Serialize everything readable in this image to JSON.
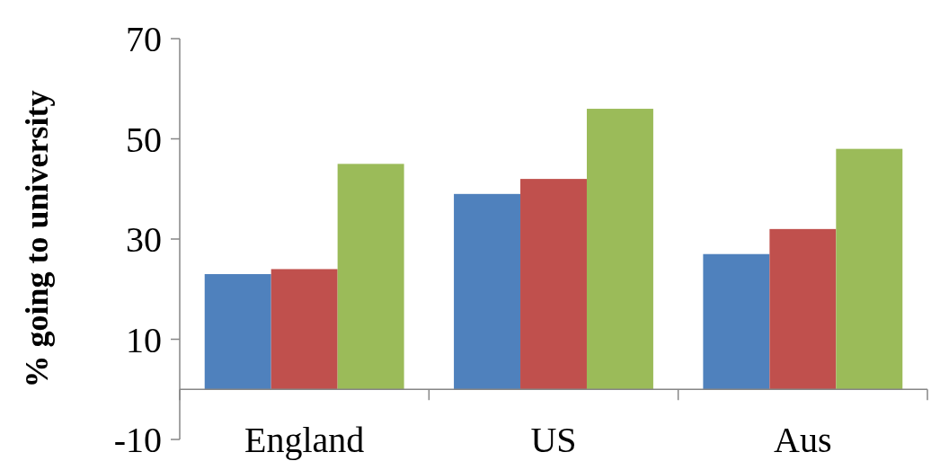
{
  "chart_data": {
    "type": "bar",
    "ylabel": "% going to university",
    "categories": [
      "England",
      "US",
      "Aus"
    ],
    "series": [
      {
        "color": "#4f81bd",
        "values": [
          23,
          39,
          27
        ]
      },
      {
        "color": "#c0504d",
        "values": [
          24,
          42,
          32
        ]
      },
      {
        "color": "#9bbb59",
        "values": [
          45,
          56,
          48
        ]
      }
    ],
    "ylim": [
      -10,
      70
    ],
    "yticks": [
      -10,
      10,
      30,
      50,
      70
    ],
    "grid": false
  }
}
